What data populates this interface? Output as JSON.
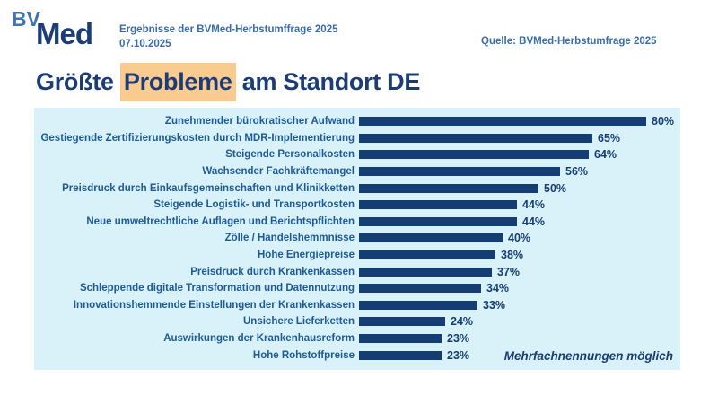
{
  "header": {
    "logo_bv": "BV",
    "logo_med": "Med",
    "subtitle_line1": "Ergebnisse der BVMed-Herbstumffrage 2025",
    "subtitle_line2": "07.10.2025",
    "source": "Quelle: BVMed-Herbstumfrage 2025"
  },
  "title": {
    "prefix": "Größte ",
    "highlight": "Probleme",
    "suffix": " am Standort DE",
    "highlight_color": "#F9CB90"
  },
  "chart_data": {
    "type": "bar",
    "orientation": "horizontal",
    "title": "Größte Probleme am Standort DE",
    "categories": [
      "Zunehmender bürokratischer Aufwand",
      "Gestiegende Zertifizierungskosten durch MDR-Implementierung",
      "Steigende Personalkosten",
      "Wachsender Fachkräftemangel",
      "Preisdruck durch Einkaufsgemeinschaften und Klinikketten",
      "Steigende Logistik- und Transportkosten",
      "Neue umweltrechtliche Auflagen und Berichtspflichten",
      "Zölle / Handelshemmnisse",
      "Hohe Energiepreise",
      "Preisdruck durch Krankenkassen",
      "Schleppende digitale Transformation und Datennutzung",
      "Innovationshemmende Einstellungen der Krankenkassen",
      "Unsichere Lieferketten",
      "Auswirkungen der Krankenhausreform",
      "Hohe Rohstoffpreise"
    ],
    "values": [
      80,
      65,
      64,
      56,
      50,
      44,
      44,
      40,
      38,
      37,
      34,
      33,
      24,
      23,
      23
    ],
    "value_suffix": "%",
    "xlim": [
      0,
      100
    ],
    "grid": false,
    "legend": false,
    "footnote": "Mehrfachnennungen möglich",
    "colors": {
      "bar": "#143D73",
      "panel_background": "#D9F2F9",
      "label_text": "#1E5A96",
      "value_text": "#143D73"
    }
  }
}
